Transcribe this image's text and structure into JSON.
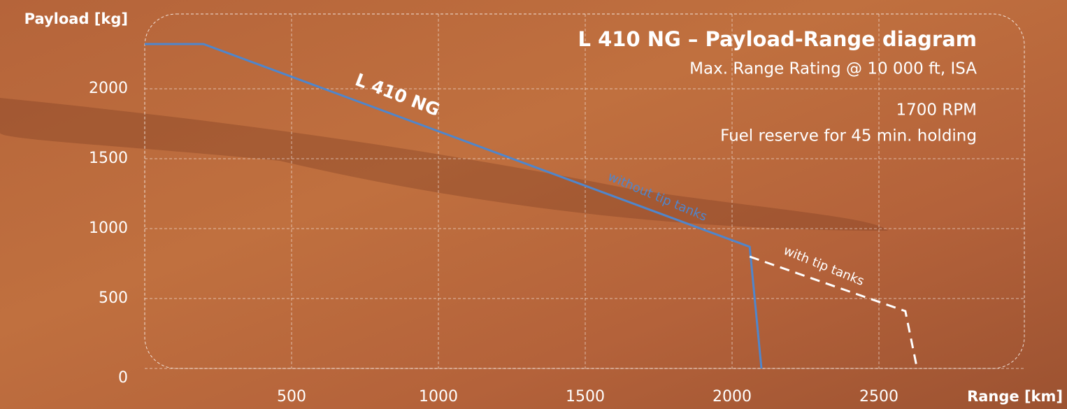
{
  "chart_data": {
    "type": "line",
    "title": "L 410 NG – Payload-Range diagram",
    "subtitle": [
      "Max. Range Rating @ 10 000 ft, ISA",
      "1700 RPM",
      "Fuel reserve for 45 min. holding"
    ],
    "annotation": "L 410 NG",
    "ylabel": "Payload [kg]",
    "xlabel": "Range [km]",
    "series": [
      {
        "name": "without tip tanks",
        "color": "#4f86cc",
        "dashed": false,
        "x": [
          0,
          200,
          2060,
          2100
        ],
        "values": [
          2320,
          2320,
          870,
          0
        ]
      },
      {
        "name": "with tip tanks",
        "color": "#ffffff",
        "dashed": true,
        "x": [
          2060,
          2590,
          2630
        ],
        "values": [
          800,
          410,
          0
        ]
      }
    ],
    "xlim": [
      0,
      3000
    ],
    "ylim": [
      0,
      2500
    ],
    "xticks": [
      500,
      1000,
      1500,
      2000,
      2500
    ],
    "yticks": [
      0,
      500,
      1000,
      1500,
      2000
    ],
    "grid": true
  }
}
